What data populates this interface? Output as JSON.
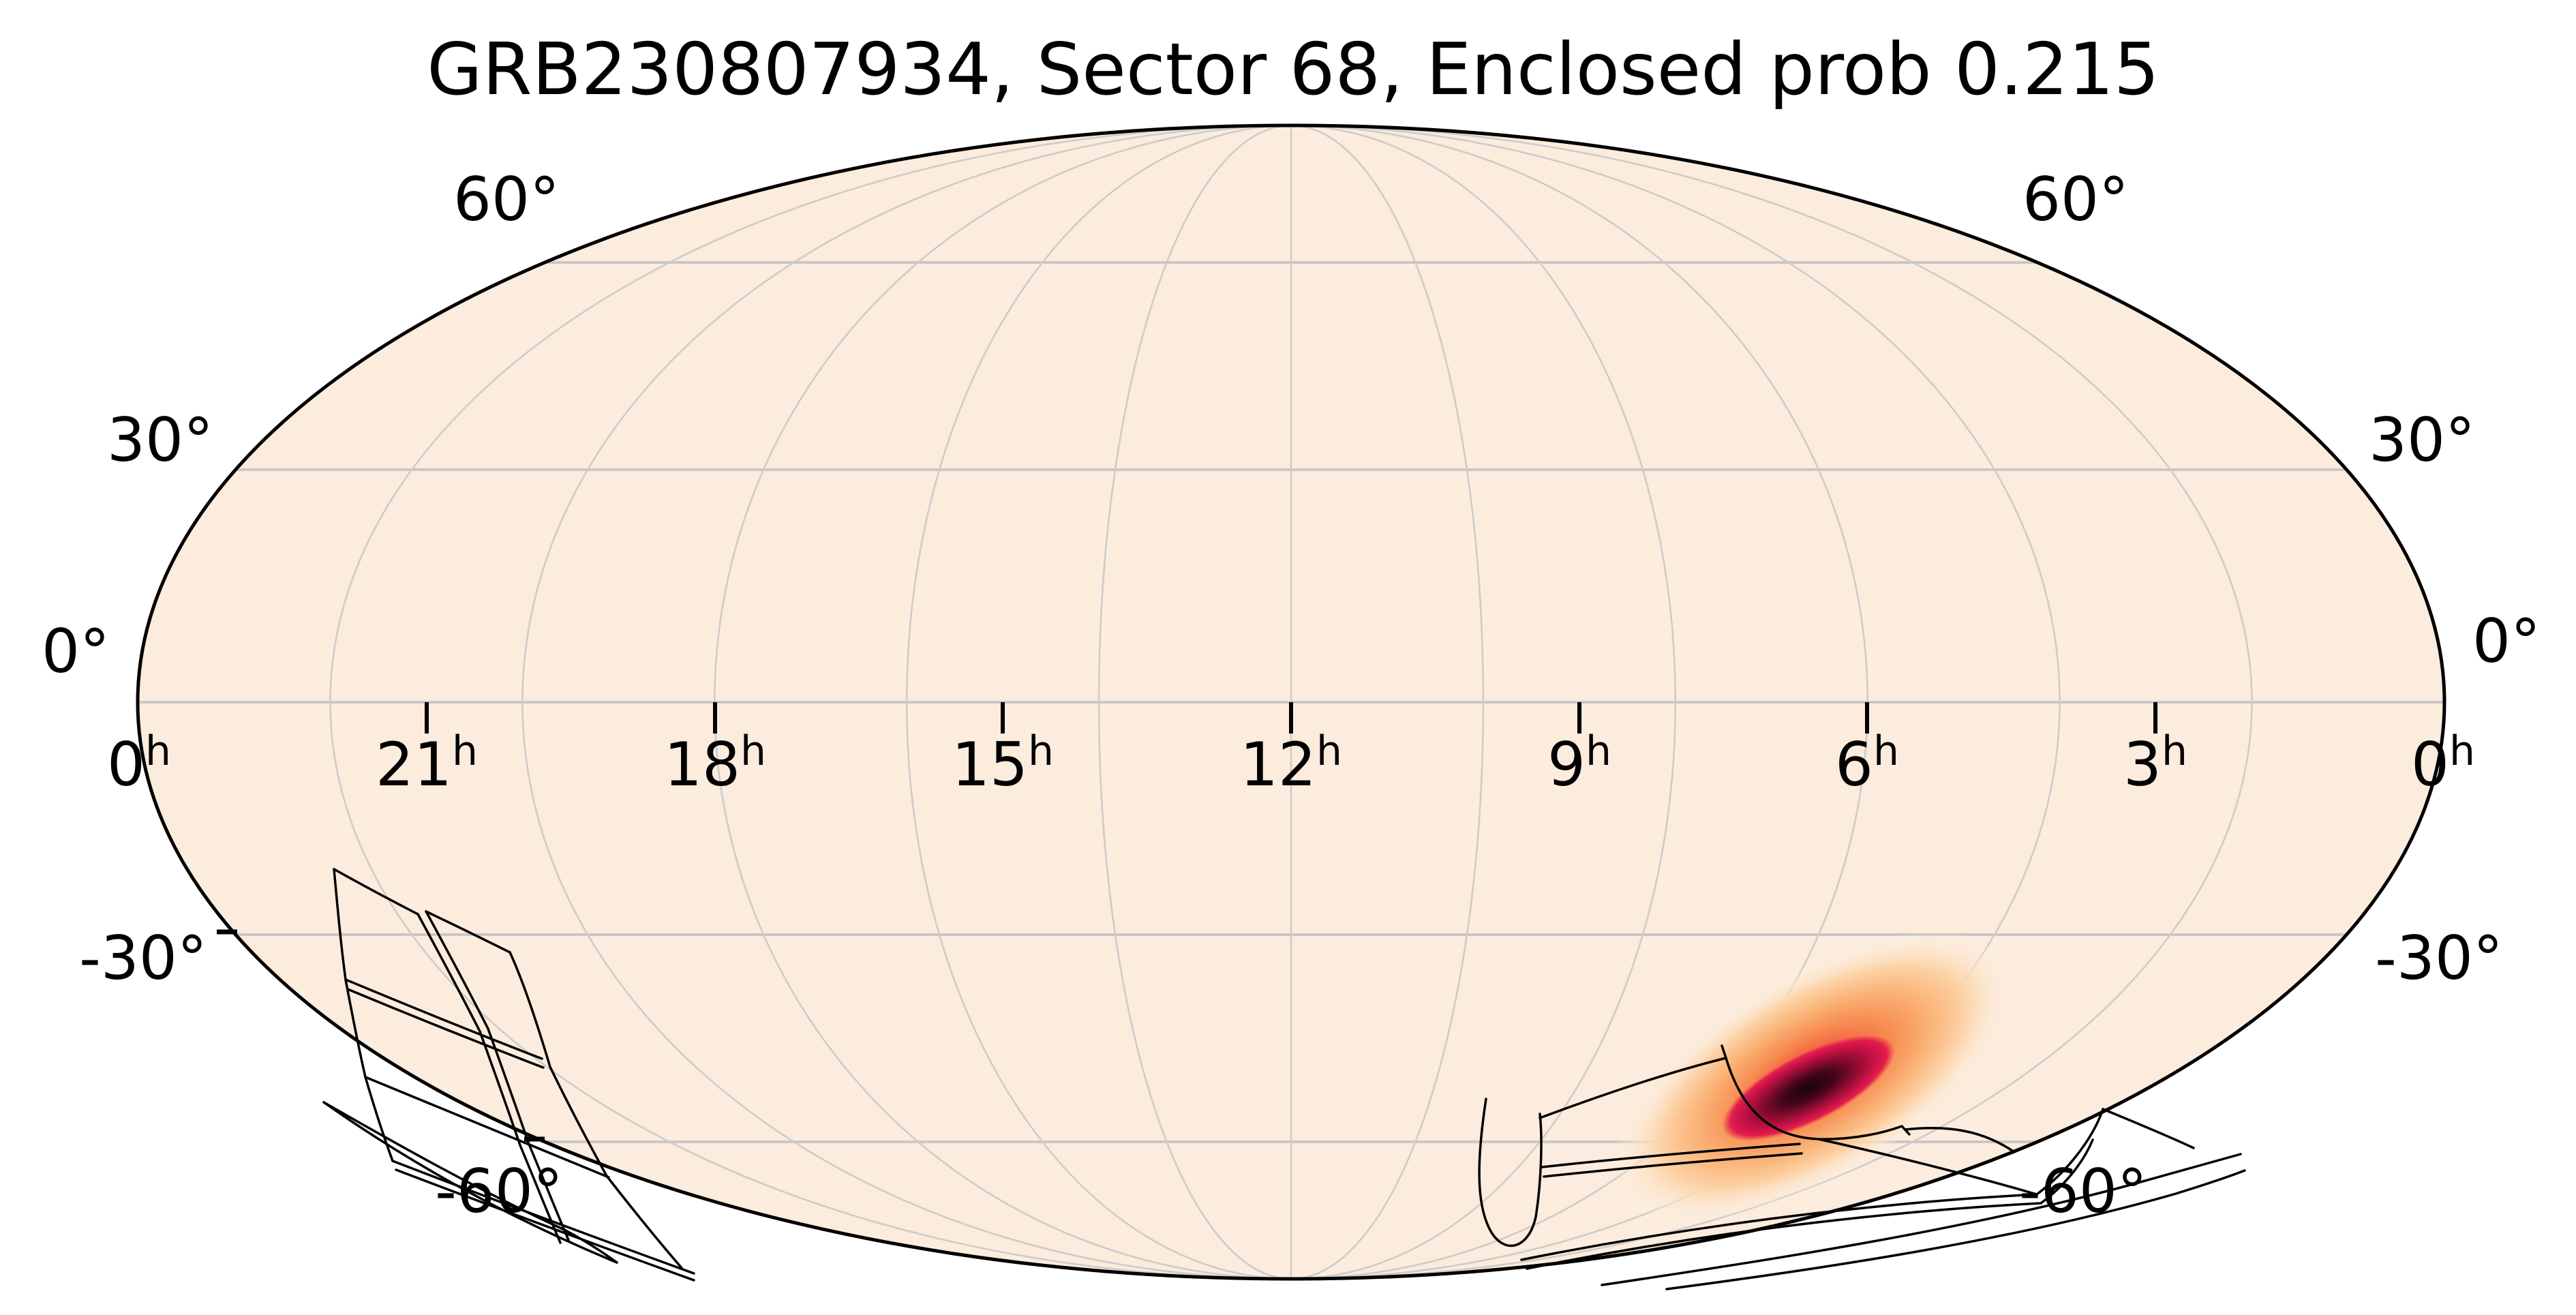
{
  "chart_data": {
    "type": "heatmap",
    "subtype": "all-sky-probability-map",
    "projection": "mollweide",
    "title": "GRB230807934, Sector 68, Enclosed prob 0.215",
    "event_name": "GRB230807934",
    "sector": 68,
    "enclosed_probability": 0.215,
    "x_axis": {
      "quantity": "right ascension",
      "unit_superscript": "h",
      "tick_values": [
        "0",
        "21",
        "18",
        "15",
        "12",
        "9",
        "6",
        "3",
        "0"
      ],
      "ticks_direction": "below equator line"
    },
    "y_axis": {
      "quantity": "declination",
      "tick_labels": [
        "60°",
        "30°",
        "0°",
        "-30°",
        "-60°"
      ],
      "labels_on_both_sides": true
    },
    "grid": {
      "parallels_every_deg": 30,
      "meridians_every_deg": 30,
      "visible": true
    },
    "probability_blob": {
      "description": "localization probability density, dark core with orange halo",
      "approx_center_ra_hours": 4.9,
      "approx_center_dec_deg": -51,
      "orientation": "elongated toward upper-right",
      "halo_stops": [
        [
          "0%",
          "#e8224d",
          1
        ],
        [
          "18%",
          "#f25840",
          1
        ],
        [
          "38%",
          "#f78b50",
          1
        ],
        [
          "58%",
          "#fab276",
          1
        ],
        [
          "76%",
          "#fcd2a6",
          1
        ],
        [
          "90%",
          "#fde7cf",
          0.55
        ],
        [
          "100%",
          "#fdeede",
          0
        ]
      ],
      "core_stops": [
        [
          "0%",
          "#1d0309",
          1
        ],
        [
          "30%",
          "#43051a",
          1
        ],
        [
          "55%",
          "#8c0c2f",
          1
        ],
        [
          "75%",
          "#c41144",
          1
        ],
        [
          "90%",
          "#e31c4e",
          1
        ],
        [
          "100%",
          "#e8224d",
          0
        ]
      ]
    },
    "footprints": {
      "description": "TESS Sector 68 camera/CCD outlines",
      "left_group_paths": [
        "M 490 1275 C 531 1298, 572 1320, 613 1341",
        "M 625 1337 C 667 1357, 708 1377, 748 1397",
        "M 490 1275 C 495 1330, 500 1385, 507 1437 C 516 1485, 525 1532, 536 1580 C 548 1621, 561 1662, 576 1703",
        "M 748 1397 C 767 1438, 787 1498, 807 1565 C 833 1619, 861 1672, 890 1725 C 925 1770, 962 1816, 1000 1860",
        "M 613 1341 C 644 1398, 675 1456, 704 1513 C 724 1569, 744 1624, 763 1680 C 783 1728, 802 1776, 822 1823",
        "M 625 1337 C 656 1394, 687 1452, 716 1509 C 736 1565, 756 1620, 775 1676 C 795 1724, 814 1772, 834 1819",
        "M 507 1437 C 603 1477, 699 1516, 795 1553",
        "M 510 1451 C 606 1491, 701 1529, 797 1566",
        "M 536 1580 C 655 1630, 774 1679, 893 1727",
        "M 576 1703 C 724 1760, 872 1815, 1018 1868",
        "M 581 1716 C 728 1772, 874 1826, 1018 1878",
        "M 475 1617 C 610 1712, 755 1790, 905 1852",
        "M 475 1617 C 585 1680, 700 1745, 830 1805 C 858 1820, 883 1836, 905 1852"
      ],
      "right_group_paths": [
        "M 2180 1612 C 2168 1692, 2163 1766, 2188 1808 C 2209 1841, 2243 1831, 2253 1785 C 2261 1735, 2263 1671, 2259 1634",
        "M 2259 1640 C 2350 1606, 2444 1574, 2532 1552",
        "M 2532 1552 C 2556 1632, 2600 1668, 2668 1671 C 2722 1672, 2766 1661, 2790 1652 L 2801 1664",
        "M 2795 1657 C 2860 1650, 2910 1659, 2955 1690",
        "M 2232 1848 C 2462 1802, 2722 1766, 2988 1752 C 3040 1713, 3073 1663, 3085 1627",
        "M 2240 1861 C 2468 1815, 2726 1779, 2994 1765 C 3028 1740, 3056 1706, 3070 1672",
        "M 3085 1627 C 3131 1646, 3180 1666, 3218 1684",
        "M 2668 1671 C 2776 1695, 2884 1722, 2988 1752",
        "M 2262 1712 C 2391 1698, 2520 1687, 2640 1678",
        "M 2265 1726 C 2394 1712, 2523 1701, 2643 1692",
        "M 2350 1885 C 2606 1847, 2882 1804, 3122 1739 C 3191 1720, 3247 1704, 3287 1693",
        "M 2445 1891 C 2697 1858, 2962 1817, 3192 1751 C 3237 1737, 3270 1726, 3293 1717",
        "M 2532 1552 L 2526 1534"
      ]
    },
    "colors": {
      "sky_background": "#fcecdd",
      "figure_background": "#ffffff",
      "graticule_parallel": "#c8c8c8",
      "graticule_meridian": "#cccccc",
      "map_boundary": "#000000",
      "footprint_line": "#000000",
      "tick": "#000000",
      "text": "#000000"
    },
    "legend": "none",
    "colorbar": "none"
  }
}
